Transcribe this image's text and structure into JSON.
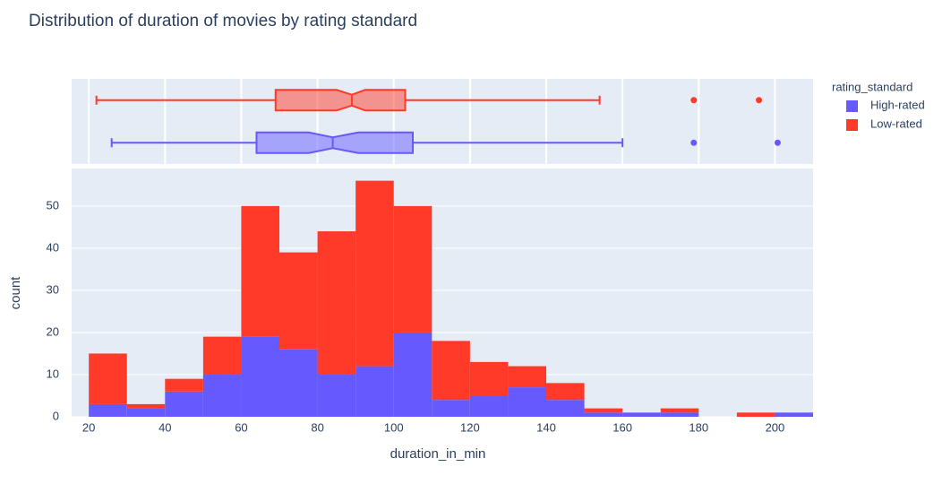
{
  "chart_data": {
    "type": "histogram",
    "title": "Distribution of duration of movies by rating standard",
    "x_label": "duration_in_min",
    "y_label": "count",
    "legend_title": "rating_standard",
    "legend_position": "right",
    "barmode": "stack",
    "grid": true,
    "bins": [
      20,
      30,
      40,
      50,
      60,
      70,
      80,
      90,
      100,
      110,
      120,
      130,
      140,
      150,
      160,
      170,
      180,
      190,
      200,
      210
    ],
    "series": [
      {
        "name": "High-rated",
        "color": "#6659fd",
        "values": [
          3,
          2,
          6,
          10,
          19,
          16,
          10,
          12,
          20,
          4,
          5,
          7,
          4,
          1,
          1,
          1,
          0,
          0,
          1
        ],
        "box": {
          "whisker_low": 26,
          "q1": 64,
          "notch_low": 77.7,
          "median": 84,
          "notch_high": 90.7,
          "q3": 105,
          "whisker_high": 160,
          "outliers": [
            178.7,
            200.7
          ]
        }
      },
      {
        "name": "Low-rated",
        "color": "#ff3a28",
        "values": [
          12,
          1,
          3,
          9,
          31,
          23,
          34,
          44,
          30,
          14,
          8,
          5,
          4,
          1,
          0,
          1,
          0,
          1,
          0
        ],
        "box": {
          "whisker_low": 22,
          "q1": 69,
          "notch_low": 85,
          "median": 89,
          "notch_high": 92.5,
          "q3": 103,
          "whisker_high": 154,
          "outliers": [
            178.7,
            195.8
          ]
        }
      }
    ],
    "xlim": [
      15.5,
      210
    ],
    "xticks": [
      20,
      40,
      60,
      80,
      100,
      120,
      140,
      160,
      180,
      200
    ],
    "ylim": [
      0,
      58.9
    ],
    "yticks": [
      0,
      10,
      20,
      30,
      40,
      50
    ]
  }
}
